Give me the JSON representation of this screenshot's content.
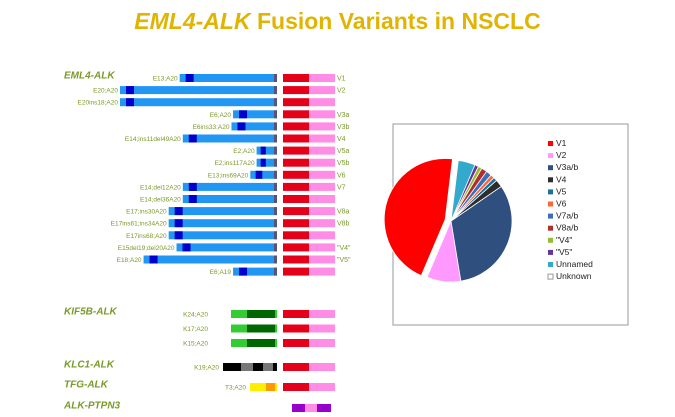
{
  "title": {
    "gene": "EML4-ALK",
    "rest": "Fusion Variants in NSCLC"
  },
  "colors": {
    "eml4": "#2196f3",
    "eml4_dark": "#0000cc",
    "alk_kinase": "#e5001a",
    "alk_tail": "#ff8de6",
    "kif5b_light": "#33cc33",
    "kif5b_dark": "#006600",
    "klc1_black": "#000000",
    "klc1_grey": "#777777",
    "tfg_yellow": "#ffee00",
    "tfg_orange": "#ff9900",
    "ptpn3": "#9900cc",
    "label": "#7a9a2a",
    "title": "#e0b400"
  },
  "groups": [
    {
      "name": "EML4-ALK",
      "rows": [
        0,
        17
      ]
    },
    {
      "name": "KIF5B-ALK",
      "rows": [
        18,
        20
      ]
    },
    {
      "name": "KLC1-ALK",
      "rows": [
        21,
        21
      ]
    },
    {
      "name": "TFG-ALK",
      "rows": [
        22,
        22
      ]
    },
    {
      "name": "ALK-PTPN3",
      "rows": [
        23,
        23
      ]
    }
  ],
  "fusions": [
    {
      "label": "E13;A20",
      "variant": "V1",
      "len": 0.62,
      "segments": [
        "E",
        "K",
        "T"
      ]
    },
    {
      "label": "E20;A20",
      "variant": "V2",
      "len": 1.0,
      "segments": [
        "E",
        "K",
        "T"
      ]
    },
    {
      "label": "E20ins18;A20",
      "variant": "",
      "len": 1.0,
      "segments": [
        "E",
        "K",
        "T"
      ]
    },
    {
      "label": "E6;A20",
      "variant": "V3a",
      "len": 0.28,
      "segments": [
        "E",
        "K",
        "T"
      ]
    },
    {
      "label": "E6ins33;A20",
      "variant": "V3b",
      "len": 0.29,
      "segments": [
        "E",
        "K",
        "T"
      ]
    },
    {
      "label": "E14;ins11del49A20",
      "variant": "V4",
      "len": 0.6,
      "segments": [
        "E",
        "K",
        "T"
      ]
    },
    {
      "label": "E2;A20",
      "variant": "V5a",
      "len": 0.13,
      "segments": [
        "E",
        "K",
        "T"
      ]
    },
    {
      "label": "E2;ins117A20",
      "variant": "V5b",
      "len": 0.13,
      "segments": [
        "E",
        "K",
        "T"
      ]
    },
    {
      "label": "E13;ins69A20",
      "variant": "V6",
      "len": 0.17,
      "segments": [
        "E",
        "K",
        "T"
      ]
    },
    {
      "label": "E14;del12A20",
      "variant": "V7",
      "len": 0.6,
      "segments": [
        "E",
        "K",
        "T"
      ]
    },
    {
      "label": "E14;del36A20",
      "variant": "",
      "len": 0.6,
      "segments": [
        "E",
        "K",
        "T"
      ]
    },
    {
      "label": "E17;ins30A20",
      "variant": "V8a",
      "len": 0.69,
      "segments": [
        "E",
        "K",
        "T"
      ]
    },
    {
      "label": "E17ins61;ins34A20",
      "variant": "V8b",
      "len": 0.69,
      "segments": [
        "E",
        "K",
        "T"
      ]
    },
    {
      "label": "E17ins68;A20",
      "variant": "",
      "len": 0.69,
      "segments": [
        "E",
        "K",
        "T"
      ]
    },
    {
      "label": "E15del19;del20A20",
      "variant": "\"V4\"",
      "len": 0.64,
      "segments": [
        "E",
        "K",
        "T"
      ]
    },
    {
      "label": "E18;A20",
      "variant": "\"V5\"",
      "len": 0.85,
      "segments": [
        "E",
        "K",
        "T"
      ]
    },
    {
      "label": "E6;A19",
      "variant": "",
      "len": 0.28,
      "segments": [
        "E",
        "K",
        "T"
      ]
    },
    {
      "label": "",
      "variant": "",
      "len": 0,
      "segments": []
    },
    {
      "label": "K24;A20",
      "variant": "",
      "len": 0,
      "segments": [
        "KIF",
        "K",
        "T"
      ]
    },
    {
      "label": "K17;A20",
      "variant": "",
      "len": 0,
      "segments": [
        "KIF",
        "K",
        "T"
      ]
    },
    {
      "label": "K15;A20",
      "variant": "",
      "len": 0,
      "segments": [
        "KIF",
        "K",
        "T"
      ]
    },
    {
      "label": "K19;A20",
      "variant": "",
      "len": 0,
      "segments": [
        "KLC",
        "K",
        "T"
      ]
    },
    {
      "label": "T3;A20",
      "variant": "",
      "len": 0,
      "segments": [
        "TFG",
        "K",
        "T"
      ]
    },
    {
      "label": "",
      "variant": "",
      "len": 0,
      "segments": [
        "PTP"
      ]
    }
  ],
  "pie": {
    "legend": [
      "V1",
      "V2",
      "V3a/b",
      "V4",
      "V5",
      "V6",
      "V7a/b",
      "V8a/b",
      "\"V4\"",
      "\"V5\"",
      "Unnamed",
      "Unknown"
    ],
    "values": [
      0.455,
      0.09,
      0.32,
      0.02,
      0.01,
      0.01,
      0.015,
      0.015,
      0.01,
      0.01,
      0.045,
      0.0
    ],
    "colors": [
      "#ff0000",
      "#ff99ff",
      "#2f4f7f",
      "#2d2d2d",
      "#1a70a0",
      "#ff6633",
      "#3d6dbb",
      "#b03030",
      "#99bb33",
      "#663399",
      "#33aacc",
      "#ffffff"
    ]
  }
}
